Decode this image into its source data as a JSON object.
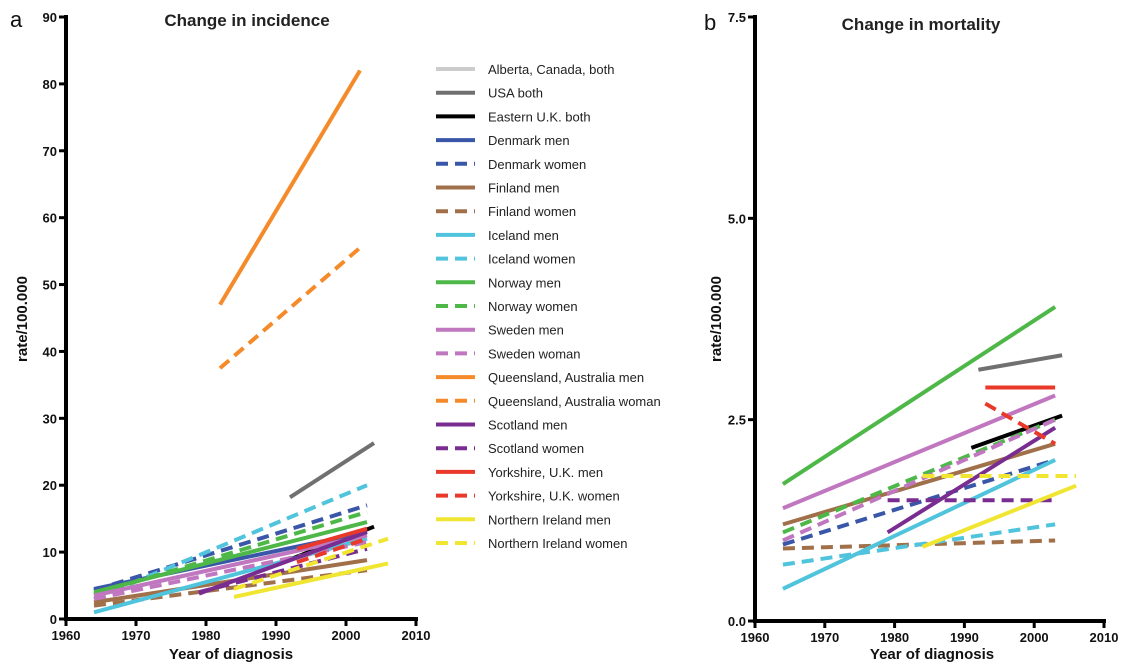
{
  "chart_data": [
    {
      "type": "line",
      "panel_letter": "a",
      "title": "Change in incidence",
      "xlabel": "Year of diagnosis",
      "ylabel": "rate/100.000",
      "xlim": [
        1960,
        2010
      ],
      "ylim": [
        0,
        90
      ],
      "xticks": [
        "1960",
        "1970",
        "1980",
        "1990",
        "2000",
        "2010"
      ],
      "yticks": [
        "0",
        "10",
        "20",
        "30",
        "40",
        "50",
        "60",
        "70",
        "80",
        "90"
      ],
      "legend_position": "right",
      "series": [
        {
          "name": "Alberta, Canada, both",
          "color": "#cccccc",
          "dash": false,
          "x": [
            1964,
            2003
          ],
          "y": [
            3.5,
            12.5
          ]
        },
        {
          "name": "USA both",
          "color": "#707070",
          "dash": false,
          "x": [
            1992,
            2004
          ],
          "y": [
            18.2,
            26.3
          ]
        },
        {
          "name": "Eastern U.K. both",
          "color": "#000000",
          "dash": false,
          "x": [
            1991,
            2004
          ],
          "y": [
            8.5,
            13.8
          ]
        },
        {
          "name": "Denmark men",
          "color": "#3a56a8",
          "dash": false,
          "x": [
            1964,
            2003
          ],
          "y": [
            4.5,
            13.0
          ]
        },
        {
          "name": "Denmark women",
          "color": "#3a56a8",
          "dash": true,
          "x": [
            1964,
            2003
          ],
          "y": [
            4.3,
            17.0
          ]
        },
        {
          "name": "Finland men",
          "color": "#a0704a",
          "dash": false,
          "x": [
            1964,
            2003
          ],
          "y": [
            2.5,
            8.8
          ]
        },
        {
          "name": "Finland women",
          "color": "#a0704a",
          "dash": true,
          "x": [
            1964,
            2003
          ],
          "y": [
            2.0,
            7.3
          ]
        },
        {
          "name": "Iceland men",
          "color": "#50c4dc",
          "dash": false,
          "x": [
            1964,
            2003
          ],
          "y": [
            1.0,
            12.0
          ]
        },
        {
          "name": "Iceland women",
          "color": "#50c4dc",
          "dash": true,
          "x": [
            1964,
            2003
          ],
          "y": [
            3.0,
            20.0
          ]
        },
        {
          "name": "Norway men",
          "color": "#4db848",
          "dash": false,
          "x": [
            1964,
            2003
          ],
          "y": [
            4.0,
            14.5
          ]
        },
        {
          "name": "Norway women",
          "color": "#4db848",
          "dash": true,
          "x": [
            1964,
            2003
          ],
          "y": [
            3.7,
            16.0
          ]
        },
        {
          "name": "Sweden men",
          "color": "#c077c0",
          "dash": false,
          "x": [
            1964,
            2003
          ],
          "y": [
            3.5,
            12.5
          ]
        },
        {
          "name": "Sweden woman",
          "color": "#c077c0",
          "dash": true,
          "x": [
            1964,
            2003
          ],
          "y": [
            3.0,
            11.5
          ]
        },
        {
          "name": "Queensland, Australia men",
          "color": "#f58a2a",
          "dash": false,
          "x": [
            1982,
            2002
          ],
          "y": [
            47.0,
            82.0
          ]
        },
        {
          "name": "Queensland, Australia woman",
          "color": "#f58a2a",
          "dash": true,
          "x": [
            1982,
            2002
          ],
          "y": [
            37.5,
            55.5
          ]
        },
        {
          "name": "Scotland men",
          "color": "#7a2d90",
          "dash": false,
          "x": [
            1979,
            2003
          ],
          "y": [
            3.8,
            13.0
          ]
        },
        {
          "name": "Scotland women",
          "color": "#7a2d90",
          "dash": true,
          "x": [
            1979,
            2003
          ],
          "y": [
            4.0,
            10.5
          ]
        },
        {
          "name": "Yorkshire, U.K. men",
          "color": "#e8392a",
          "dash": false,
          "x": [
            1993,
            2003
          ],
          "y": [
            10.5,
            13.5
          ]
        },
        {
          "name": "Yorkshire, U.K. women",
          "color": "#e8392a",
          "dash": true,
          "x": [
            1993,
            2003
          ],
          "y": [
            8.5,
            12.0
          ]
        },
        {
          "name": "Northern Ireland men",
          "color": "#f0e531",
          "dash": false,
          "x": [
            1984,
            2006
          ],
          "y": [
            3.3,
            8.3
          ]
        },
        {
          "name": "Northern Ireland women",
          "color": "#f0e531",
          "dash": true,
          "x": [
            1984,
            2006
          ],
          "y": [
            4.5,
            12.0
          ]
        }
      ]
    },
    {
      "type": "line",
      "panel_letter": "b",
      "title": "Change in mortality",
      "xlabel": "Year of diagnosis",
      "ylabel": "rate/100.000",
      "xlim": [
        1960,
        2010
      ],
      "ylim": [
        0,
        7.5
      ],
      "xticks": [
        "1960",
        "1970",
        "1980",
        "1990",
        "2000",
        "2010"
      ],
      "yticks": [
        "0.0",
        "2.5",
        "5.0",
        "7.5"
      ],
      "series": [
        {
          "name": "USA both",
          "color": "#707070",
          "dash": false,
          "x": [
            1992,
            2004
          ],
          "y": [
            3.12,
            3.3
          ]
        },
        {
          "name": "Eastern U.K. both",
          "color": "#000000",
          "dash": false,
          "x": [
            1991,
            2004
          ],
          "y": [
            2.15,
            2.55
          ]
        },
        {
          "name": "Denmark women",
          "color": "#3a56a8",
          "dash": true,
          "x": [
            1964,
            2003
          ],
          "y": [
            0.95,
            2.0
          ]
        },
        {
          "name": "Finland men",
          "color": "#a0704a",
          "dash": false,
          "x": [
            1964,
            2003
          ],
          "y": [
            1.2,
            2.2
          ]
        },
        {
          "name": "Finland women",
          "color": "#a0704a",
          "dash": true,
          "x": [
            1964,
            2003
          ],
          "y": [
            0.9,
            1.0
          ]
        },
        {
          "name": "Iceland men",
          "color": "#50c4dc",
          "dash": false,
          "x": [
            1964,
            2003
          ],
          "y": [
            0.4,
            2.0
          ]
        },
        {
          "name": "Iceland women",
          "color": "#50c4dc",
          "dash": true,
          "x": [
            1964,
            2003
          ],
          "y": [
            0.7,
            1.2
          ]
        },
        {
          "name": "Norway men",
          "color": "#4db848",
          "dash": false,
          "x": [
            1964,
            2003
          ],
          "y": [
            1.7,
            3.9
          ]
        },
        {
          "name": "Norway women",
          "color": "#4db848",
          "dash": true,
          "x": [
            1964,
            2003
          ],
          "y": [
            1.1,
            2.5
          ]
        },
        {
          "name": "Sweden men",
          "color": "#c077c0",
          "dash": false,
          "x": [
            1964,
            2003
          ],
          "y": [
            1.4,
            2.8
          ]
        },
        {
          "name": "Sweden woman",
          "color": "#c077c0",
          "dash": true,
          "x": [
            1964,
            2003
          ],
          "y": [
            1.0,
            2.5
          ]
        },
        {
          "name": "Scotland men",
          "color": "#7a2d90",
          "dash": false,
          "x": [
            1979,
            2003
          ],
          "y": [
            1.1,
            2.4
          ]
        },
        {
          "name": "Scotland women",
          "color": "#7a2d90",
          "dash": true,
          "x": [
            1979,
            2003
          ],
          "y": [
            1.5,
            1.5
          ]
        },
        {
          "name": "Yorkshire, U.K. men",
          "color": "#e8392a",
          "dash": false,
          "x": [
            1993,
            2003
          ],
          "y": [
            2.9,
            2.9
          ]
        },
        {
          "name": "Yorkshire, U.K. women",
          "color": "#e8392a",
          "dash": true,
          "x": [
            1993,
            2003
          ],
          "y": [
            2.7,
            2.2
          ]
        },
        {
          "name": "Northern Ireland men",
          "color": "#f0e531",
          "dash": false,
          "x": [
            1984,
            2006
          ],
          "y": [
            0.92,
            1.68
          ]
        },
        {
          "name": "Northern Ireland women",
          "color": "#f0e531",
          "dash": true,
          "x": [
            1984,
            2006
          ],
          "y": [
            1.8,
            1.8
          ]
        }
      ]
    }
  ]
}
